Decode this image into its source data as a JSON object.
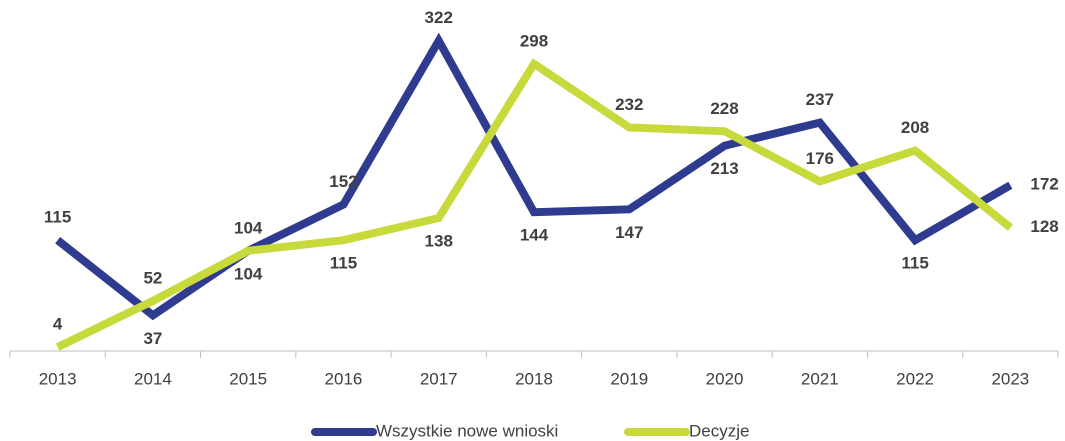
{
  "chart_data": {
    "type": "line",
    "categories": [
      "2013",
      "2014",
      "2015",
      "2016",
      "2017",
      "2018",
      "2019",
      "2020",
      "2021",
      "2022",
      "2023"
    ],
    "series": [
      {
        "name": "Wszystkie nowe wnioski",
        "color": "#2e3b8f",
        "values": [
          115,
          37,
          104,
          152,
          322,
          144,
          147,
          213,
          237,
          115,
          172
        ]
      },
      {
        "name": "Decyzje",
        "color": "#c8d93c",
        "values": [
          4,
          52,
          104,
          115,
          138,
          298,
          232,
          228,
          176,
          208,
          128
        ]
      }
    ],
    "ylim": [
      0,
      330
    ],
    "legend": "bottom"
  }
}
